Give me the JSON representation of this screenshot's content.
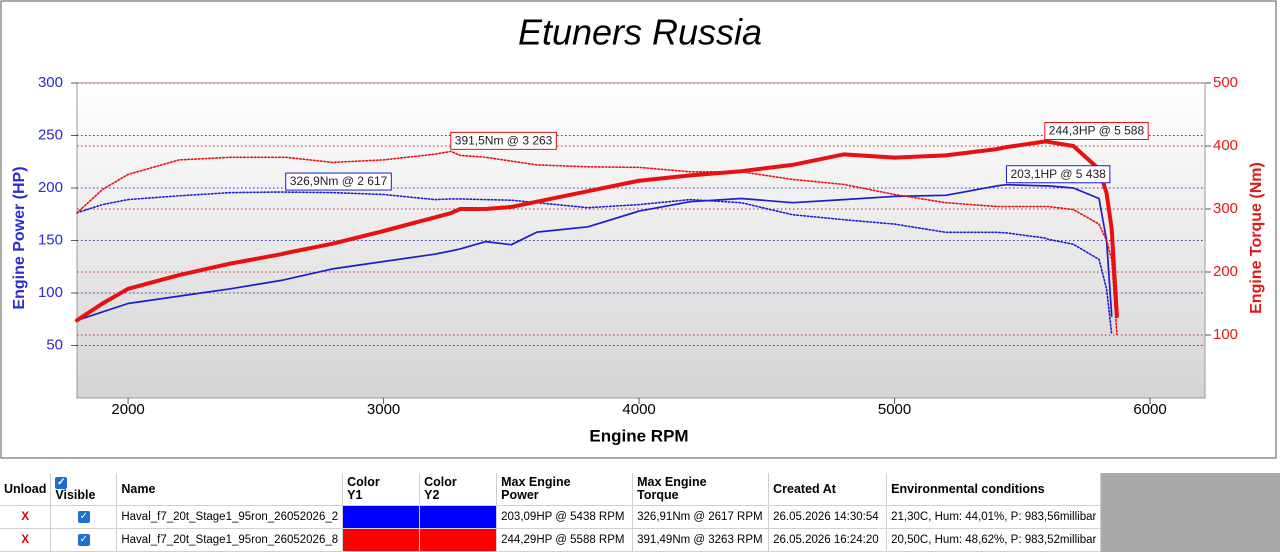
{
  "chart_data": {
    "type": "line",
    "title": "Etuners Russia",
    "x_label": "Engine RPM",
    "y_label": "Engine Power (HP)",
    "y2_label": "Engine Torque (Nm)",
    "x": [
      1800,
      1900,
      2000,
      2200,
      2400,
      2600,
      2617,
      2800,
      3000,
      3200,
      3263,
      3300,
      3400,
      3500,
      3600,
      3800,
      4000,
      4200,
      4400,
      4600,
      4800,
      5000,
      5200,
      5400,
      5438,
      5588,
      5600,
      5700,
      5800,
      5830,
      5850,
      5870
    ],
    "xlim": [
      1800,
      6215
    ],
    "xticks": [
      2000,
      3000,
      4000,
      5000,
      6000
    ],
    "ylim": [
      0,
      300
    ],
    "yticks": [
      50,
      100,
      150,
      200,
      250,
      300
    ],
    "y_color": "#2a2ad6",
    "y2lim": [
      0,
      500
    ],
    "y2ticks": [
      100,
      200,
      300,
      400,
      500
    ],
    "y2_color": "#e01818",
    "grid": true,
    "series": [
      {
        "color": "#1c1cd0",
        "line_style": "solid",
        "values": [
          74,
          82,
          90,
          97,
          104,
          112,
          113,
          123,
          130,
          137,
          140,
          142,
          149,
          146,
          158,
          163,
          178,
          187,
          190,
          186,
          189,
          192,
          193,
          202,
          203.1,
          202,
          202,
          200,
          190,
          150,
          78,
          null
        ]
      },
      {
        "color": "#1c1cd0",
        "line_style": "dotted",
        "axis": "y2",
        "values": [
          294,
          307,
          315,
          321,
          326,
          327,
          326.9,
          326,
          323,
          315,
          316,
          316,
          315,
          314,
          310,
          302,
          307,
          315,
          310,
          291,
          283,
          276,
          263,
          263,
          262,
          254,
          252,
          244,
          220,
          173,
          101,
          null
        ]
      },
      {
        "color": "#e81010",
        "line_style": "solid",
        "values": [
          74,
          90,
          104,
          117,
          128,
          137,
          138,
          147,
          159,
          172,
          176,
          180,
          180,
          182,
          187,
          197,
          207,
          212,
          216,
          222,
          232,
          229,
          231,
          237,
          239,
          244.3,
          244,
          240,
          218,
          195,
          161,
          78
        ]
      },
      {
        "color": "#e81010",
        "line_style": "dotted",
        "axis": "y2",
        "values": [
          294,
          331,
          355,
          378,
          382,
          382,
          382,
          374,
          378,
          387,
          391.5,
          385,
          382,
          376,
          370,
          367,
          366,
          359,
          359,
          347,
          339,
          323,
          310,
          304,
          304,
          304,
          304,
          299,
          276,
          250,
          220,
          101
        ]
      }
    ],
    "annotations": [
      {
        "text": "391,5Nm @ 3 263",
        "x": 3263,
        "y": 391.5,
        "axis": "y2",
        "color": "#e81010"
      },
      {
        "text": "326,9Nm @ 2 617",
        "x": 2617,
        "y": 326.9,
        "axis": "y2",
        "color": "#1c1cd0"
      },
      {
        "text": "244,3HP @ 5 588",
        "x": 5588,
        "y": 244.3,
        "color": "#e81010"
      },
      {
        "text": "203,1HP @ 5 438",
        "x": 5438,
        "y": 203.1,
        "color": "#1c1cd0"
      }
    ]
  },
  "table": {
    "columns": [
      "Unload",
      "Visible",
      "Name",
      "Color Y1",
      "Color Y2",
      "Max Engine Power",
      "Max Engine Torque",
      "Created At",
      "Environmental conditions"
    ],
    "visible_all": true,
    "rows": [
      {
        "unload": "X",
        "visible": true,
        "name": "Haval_f7_20t_Stage1_95ron_26052026_2",
        "color_y1": "#0000ff",
        "color_y2": "#0000ff",
        "max_power": "203,09HP @ 5438 RPM",
        "max_torque": "326,91Nm @ 2617 RPM",
        "created": "26.05.2026 14:30:54",
        "env": "21,30C, Hum: 44,01%, P: 983,56millibar"
      },
      {
        "unload": "X",
        "visible": true,
        "name": "Haval_f7_20t_Stage1_95ron_26052026_8",
        "color_y1": "#ff0000",
        "color_y2": "#ff0000",
        "max_power": "244,29HP @ 5588 RPM",
        "max_torque": "391,49Nm @ 3263 RPM",
        "created": "26.05.2026 16:24:20",
        "env": "20,50C, Hum: 48,62%, P: 983,52millibar"
      }
    ]
  }
}
